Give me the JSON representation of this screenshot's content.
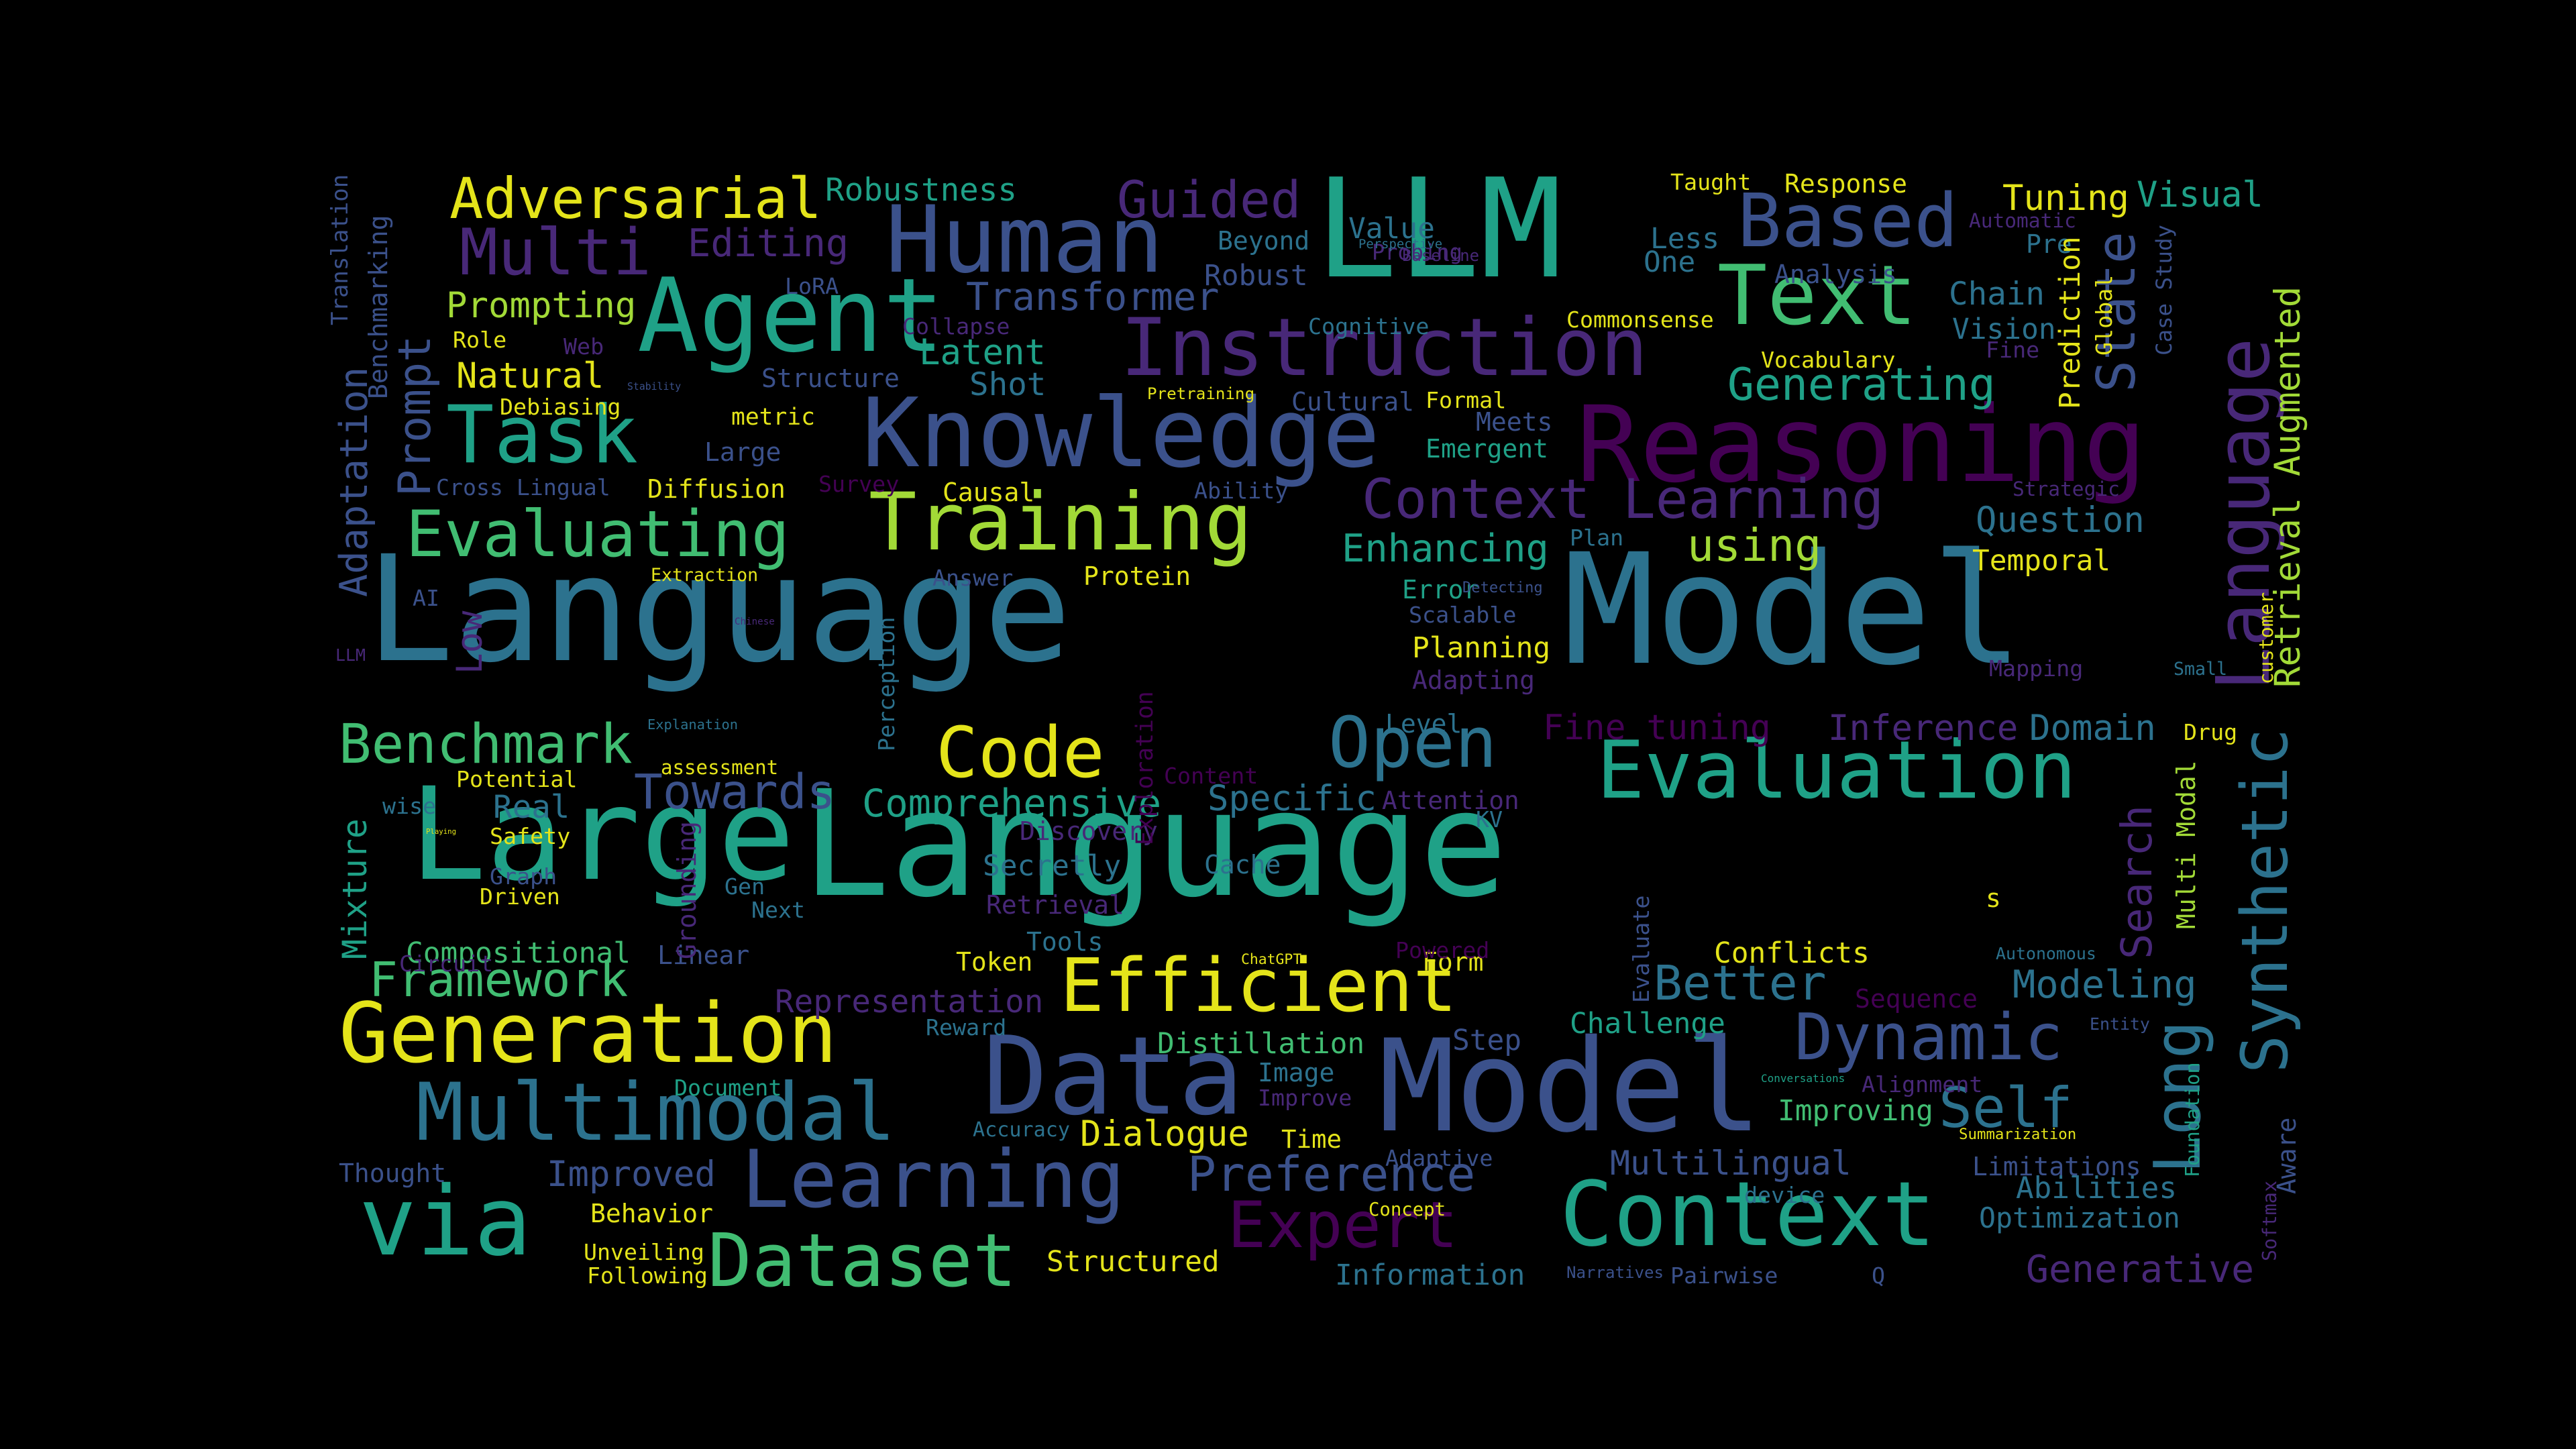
{
  "background": "#000000",
  "palette": {
    "yellow": "#e4e41a",
    "lime": "#a2da37",
    "green": "#41bd72",
    "teal": "#1fa187",
    "teal_blue": "#228c8d",
    "blue": "#2c728e",
    "indigo": "#3b518b",
    "purple": "#482878",
    "dark_purple": "#440154"
  },
  "words": [
    {
      "text": "Language",
      "color": "#2c728e"
    },
    {
      "text": "Model",
      "color": "#2c728e"
    },
    {
      "text": "Large",
      "color": "#1fa187"
    },
    {
      "text": "Language",
      "color": "#1fa187"
    },
    {
      "text": "LLM",
      "color": "#1fa187"
    },
    {
      "text": "Model",
      "color": "#3b518b"
    },
    {
      "text": "Data",
      "color": "#3b518b"
    },
    {
      "text": "Reasoning",
      "color": "#440154"
    },
    {
      "text": "Knowledge",
      "color": "#3b518b"
    },
    {
      "text": "Agent",
      "color": "#1fa187"
    },
    {
      "text": "Human",
      "color": "#3b518b"
    },
    {
      "text": "Instruction",
      "color": "#482878"
    },
    {
      "text": "Context",
      "color": "#1fa187"
    },
    {
      "text": "via",
      "color": "#1fa187"
    },
    {
      "text": "Learning",
      "color": "#3b518b"
    },
    {
      "text": "Generation",
      "color": "#e4e41a"
    },
    {
      "text": "Multimodal",
      "color": "#2c728e"
    },
    {
      "text": "Efficient",
      "color": "#e4e41a"
    },
    {
      "text": "Evaluation",
      "color": "#1fa187"
    },
    {
      "text": "Language",
      "color": "#482878"
    },
    {
      "text": "Training",
      "color": "#a2da37"
    },
    {
      "text": "Task",
      "color": "#1fa187"
    },
    {
      "text": "Text",
      "color": "#41bd72"
    },
    {
      "text": "Based",
      "color": "#3b518b"
    },
    {
      "text": "Long",
      "color": "#2c728e"
    },
    {
      "text": "Synthetic",
      "color": "#2c728e"
    },
    {
      "text": "Dataset",
      "color": "#41bd72"
    },
    {
      "text": "Open",
      "color": "#2c728e"
    },
    {
      "text": "Code",
      "color": "#e4e41a"
    },
    {
      "text": "Dynamic",
      "color": "#3b518b"
    },
    {
      "text": "Self",
      "color": "#2c728e"
    },
    {
      "text": "Expert",
      "color": "#440154"
    },
    {
      "text": "Preference",
      "color": "#3b518b"
    },
    {
      "text": "Evaluating",
      "color": "#41bd72"
    },
    {
      "text": "Multi",
      "color": "#482878"
    },
    {
      "text": "Benchmark",
      "color": "#41bd72"
    },
    {
      "text": "Adversarial",
      "color": "#e4e41a"
    },
    {
      "text": "Guided",
      "color": "#482878"
    },
    {
      "text": "Context Learning",
      "color": "#482878"
    },
    {
      "text": "Framework",
      "color": "#41bd72"
    },
    {
      "text": "Towards",
      "color": "#3b518b"
    },
    {
      "text": "Transformer",
      "color": "#3b518b"
    },
    {
      "text": "Comprehensive",
      "color": "#1fa187"
    },
    {
      "text": "Prompt",
      "color": "#3b518b"
    },
    {
      "text": "Better",
      "color": "#2c728e"
    },
    {
      "text": "Multilingual",
      "color": "#3b518b"
    },
    {
      "text": "using",
      "color": "#a2da37"
    },
    {
      "text": "Generative",
      "color": "#482878"
    },
    {
      "text": "Robustness",
      "color": "#1fa187"
    },
    {
      "text": "Generating",
      "color": "#1fa187"
    },
    {
      "text": "Enhancing",
      "color": "#1fa187"
    },
    {
      "text": "Modeling",
      "color": "#2c728e"
    },
    {
      "text": "Retrieval Augmented",
      "color": "#a2da37"
    },
    {
      "text": "Editing",
      "color": "#482878"
    },
    {
      "text": "Mixture",
      "color": "#1fa187"
    },
    {
      "text": "Adaptation",
      "color": "#3b518b"
    },
    {
      "text": "Dialogue",
      "color": "#e4e41a"
    },
    {
      "text": "Abilities",
      "color": "#2c728e"
    },
    {
      "text": "Inference",
      "color": "#482878"
    },
    {
      "text": "Domain",
      "color": "#2c728e"
    },
    {
      "text": "Specific",
      "color": "#2c728e"
    },
    {
      "text": "Tuning",
      "color": "#e4e41a"
    },
    {
      "text": "Visual",
      "color": "#1fa187"
    },
    {
      "text": "State",
      "color": "#3b518b"
    },
    {
      "text": "Search",
      "color": "#482878"
    },
    {
      "text": "Natural",
      "color": "#e4e41a"
    },
    {
      "text": "Prompting",
      "color": "#a2da37"
    },
    {
      "text": "Improved",
      "color": "#3b518b"
    },
    {
      "text": "Question",
      "color": "#2c728e"
    },
    {
      "text": "Fine tuning",
      "color": "#440154"
    },
    {
      "text": "Optimization",
      "color": "#2c728e"
    },
    {
      "text": "Compositional",
      "color": "#41bd72"
    },
    {
      "text": "Representation",
      "color": "#482878"
    },
    {
      "text": "Latent",
      "color": "#1fa187"
    },
    {
      "text": "Shot",
      "color": "#2c728e"
    },
    {
      "text": "Chain",
      "color": "#2c728e"
    },
    {
      "text": "Vision",
      "color": "#2c728e"
    },
    {
      "text": "Real",
      "color": "#2c728e"
    },
    {
      "text": "Secretly",
      "color": "#2c728e"
    },
    {
      "text": "Step",
      "color": "#3b518b"
    },
    {
      "text": "Robust",
      "color": "#3b518b"
    },
    {
      "text": "Less",
      "color": "#2c728e"
    },
    {
      "text": "One",
      "color": "#2c728e"
    },
    {
      "text": "Pre",
      "color": "#2c728e"
    },
    {
      "text": "Information",
      "color": "#2c728e"
    },
    {
      "text": "Limitations",
      "color": "#3b518b"
    },
    {
      "text": "Improving",
      "color": "#41bd72"
    },
    {
      "text": "Distillation",
      "color": "#41bd72"
    },
    {
      "text": "Challenge",
      "color": "#1fa187"
    },
    {
      "text": "Conflicts",
      "color": "#e4e41a"
    },
    {
      "text": "Structured",
      "color": "#e4e41a"
    },
    {
      "text": "Planning",
      "color": "#e4e41a"
    },
    {
      "text": "Temporal",
      "color": "#e4e41a"
    },
    {
      "text": "Protein",
      "color": "#e4e41a"
    },
    {
      "text": "Diffusion",
      "color": "#e4e41a"
    },
    {
      "text": "Behavior",
      "color": "#e4e41a"
    },
    {
      "text": "Response",
      "color": "#e4e41a"
    },
    {
      "text": "Causal",
      "color": "#e4e41a"
    },
    {
      "text": "Value",
      "color": "#2c728e"
    },
    {
      "text": "Beyond",
      "color": "#2c728e"
    },
    {
      "text": "Cultural",
      "color": "#3b518b"
    },
    {
      "text": "Emergent",
      "color": "#1fa187"
    },
    {
      "text": "Meets",
      "color": "#3b518b"
    },
    {
      "text": "Error",
      "color": "#1fa187"
    },
    {
      "text": "Level",
      "color": "#2c728e"
    },
    {
      "text": "Attention",
      "color": "#482878"
    },
    {
      "text": "Discovery",
      "color": "#482878"
    },
    {
      "text": "Cache",
      "color": "#2c728e"
    },
    {
      "text": "Tools",
      "color": "#2c728e"
    },
    {
      "text": "Token",
      "color": "#e4e41a"
    },
    {
      "text": "Form",
      "color": "#e4e41a"
    },
    {
      "text": "Time",
      "color": "#e4e41a"
    },
    {
      "text": "Image",
      "color": "#2c728e"
    },
    {
      "text": "Retrieval",
      "color": "#482878"
    },
    {
      "text": "Adapting",
      "color": "#482878"
    },
    {
      "text": "Linear",
      "color": "#3b518b"
    },
    {
      "text": "Sequence",
      "color": "#440154"
    },
    {
      "text": "Thought",
      "color": "#3b518b"
    },
    {
      "text": "Analysis",
      "color": "#3b518b"
    },
    {
      "text": "Structure",
      "color": "#3b518b"
    },
    {
      "text": "metric",
      "color": "#e4e41a"
    },
    {
      "text": "Large",
      "color": "#3b518b"
    },
    {
      "text": "LoRA",
      "color": "#3b518b"
    },
    {
      "text": "Web",
      "color": "#482878"
    },
    {
      "text": "Circuit",
      "color": "#482878"
    },
    {
      "text": "Cross Lingual",
      "color": "#3b518b"
    },
    {
      "text": "Low",
      "color": "#482878"
    },
    {
      "text": "wise",
      "color": "#2c728e"
    },
    {
      "text": "Unveiling",
      "color": "#e4e41a"
    },
    {
      "text": "Following",
      "color": "#e4e41a"
    },
    {
      "text": "Document",
      "color": "#1fa187"
    },
    {
      "text": "Multi Modal",
      "color": "#a2da37"
    },
    {
      "text": "Aware",
      "color": "#3b518b"
    },
    {
      "text": "Case Study",
      "color": "#3b518b"
    },
    {
      "text": "Prediction",
      "color": "#e4e41a"
    },
    {
      "text": "Global",
      "color": "#e4e41a"
    },
    {
      "text": "Translation",
      "color": "#3b518b"
    },
    {
      "text": "Benchmarking",
      "color": "#3b518b"
    },
    {
      "text": "Grounding",
      "color": "#482878"
    },
    {
      "text": "Exploration",
      "color": "#440154"
    },
    {
      "text": "Perception",
      "color": "#2c728e"
    },
    {
      "text": "Evaluate",
      "color": "#3b518b"
    },
    {
      "text": "Foundation",
      "color": "#1fa187"
    },
    {
      "text": "Softmax",
      "color": "#482878"
    },
    {
      "text": "customer",
      "color": "#e4e41a"
    },
    {
      "text": "Drug",
      "color": "#e4e41a"
    },
    {
      "text": "Small",
      "color": "#2c728e"
    },
    {
      "text": "Mapping",
      "color": "#482878"
    },
    {
      "text": "Strategic",
      "color": "#482878"
    },
    {
      "text": "Vocabulary",
      "color": "#e4e41a"
    },
    {
      "text": "Fine",
      "color": "#482878"
    },
    {
      "text": "Automatic",
      "color": "#482878"
    },
    {
      "text": "Probing",
      "color": "#482878"
    },
    {
      "text": "Baseline",
      "color": "#482878"
    },
    {
      "text": "Taught",
      "color": "#e4e41a"
    },
    {
      "text": "Perspective",
      "color": "#2c728e"
    },
    {
      "text": "Commonsense",
      "color": "#e4e41a"
    },
    {
      "text": "Cognitive",
      "color": "#2c728e"
    },
    {
      "text": "Collapse",
      "color": "#482878"
    },
    {
      "text": "Pretraining",
      "color": "#e4e41a"
    },
    {
      "text": "Formal",
      "color": "#e4e41a"
    },
    {
      "text": "Role",
      "color": "#e4e41a"
    },
    {
      "text": "Stability",
      "color": "#3b518b"
    },
    {
      "text": "Debiasing",
      "color": "#e4e41a"
    },
    {
      "text": "Survey",
      "color": "#440154"
    },
    {
      "text": "Ability",
      "color": "#3b518b"
    },
    {
      "text": "Plan",
      "color": "#2c728e"
    },
    {
      "text": "Detecting",
      "color": "#3b518b"
    },
    {
      "text": "Scalable",
      "color": "#3b518b"
    },
    {
      "text": "Extraction",
      "color": "#e4e41a"
    },
    {
      "text": "Answer",
      "color": "#3b518b"
    },
    {
      "text": "AI",
      "color": "#3b518b"
    },
    {
      "text": "LLM",
      "color": "#482878"
    },
    {
      "text": "Chinese",
      "color": "#482878"
    },
    {
      "text": "Explanation",
      "color": "#2c728e"
    },
    {
      "text": "Potential",
      "color": "#e4e41a"
    },
    {
      "text": "assessment",
      "color": "#e4e41a"
    },
    {
      "text": "Content",
      "color": "#440154"
    },
    {
      "text": "KV",
      "color": "#2c728e"
    },
    {
      "text": "Playing",
      "color": "#e4e41a"
    },
    {
      "text": "Safety",
      "color": "#e4e41a"
    },
    {
      "text": "Graph",
      "color": "#3b518b"
    },
    {
      "text": "Driven",
      "color": "#e4e41a"
    },
    {
      "text": "Gen",
      "color": "#2c728e"
    },
    {
      "text": "Next",
      "color": "#2c728e"
    },
    {
      "text": "ChatGPT",
      "color": "#e4e41a"
    },
    {
      "text": "Powered",
      "color": "#440154"
    },
    {
      "text": "Autonomous",
      "color": "#2c728e"
    },
    {
      "text": "Reward",
      "color": "#2c728e"
    },
    {
      "text": "Entity",
      "color": "#3b518b"
    },
    {
      "text": "Conversations",
      "color": "#1fa187"
    },
    {
      "text": "Alignment",
      "color": "#482878"
    },
    {
      "text": "Improve",
      "color": "#482878"
    },
    {
      "text": "Accuracy",
      "color": "#2c728e"
    },
    {
      "text": "Summarization",
      "color": "#e4e41a"
    },
    {
      "text": "Adaptive",
      "color": "#3b518b"
    },
    {
      "text": "device",
      "color": "#2c728e"
    },
    {
      "text": "Concept",
      "color": "#e4e41a"
    },
    {
      "text": "Narratives",
      "color": "#3b518b"
    },
    {
      "text": "Pairwise",
      "color": "#3b518b"
    },
    {
      "text": "Q",
      "color": "#3b518b"
    },
    {
      "text": "s",
      "color": "#e4e41a"
    }
  ]
}
